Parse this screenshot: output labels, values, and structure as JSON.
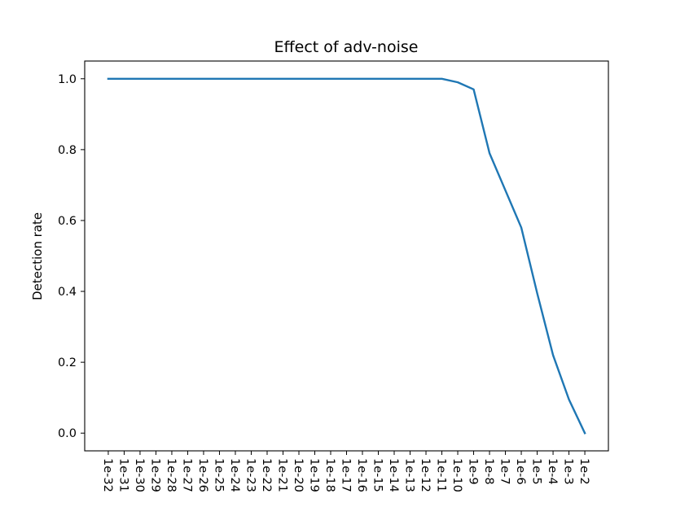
{
  "chart_data": {
    "type": "line",
    "title": "Effect of adv-noise",
    "xlabel": "",
    "ylabel": "Detection rate",
    "ylim": [
      -0.05,
      1.05
    ],
    "yticks": [
      0.0,
      0.2,
      0.4,
      0.6,
      0.8,
      1.0
    ],
    "ytick_labels": [
      "0.0",
      "0.2",
      "0.4",
      "0.6",
      "0.8",
      "1.0"
    ],
    "grid": false,
    "color": "#1f77b4",
    "categories": [
      "1e-32",
      "1e-31",
      "1e-30",
      "1e-29",
      "1e-28",
      "1e-27",
      "1e-26",
      "1e-25",
      "1e-24",
      "1e-23",
      "1e-22",
      "1e-21",
      "1e-20",
      "1e-19",
      "1e-18",
      "1e-17",
      "1e-16",
      "1e-15",
      "1e-14",
      "1e-13",
      "1e-12",
      "1e-11",
      "1e-10",
      "1e-9",
      "1e-8",
      "1e-7",
      "1e-6",
      "1e-5",
      "1e-4",
      "1e-3",
      "1e-2"
    ],
    "values": [
      1.0,
      1.0,
      1.0,
      1.0,
      1.0,
      1.0,
      1.0,
      1.0,
      1.0,
      1.0,
      1.0,
      1.0,
      1.0,
      1.0,
      1.0,
      1.0,
      1.0,
      1.0,
      1.0,
      1.0,
      1.0,
      1.0,
      0.99,
      0.97,
      0.79,
      0.685,
      0.58,
      0.395,
      0.22,
      0.095,
      0.0
    ]
  }
}
